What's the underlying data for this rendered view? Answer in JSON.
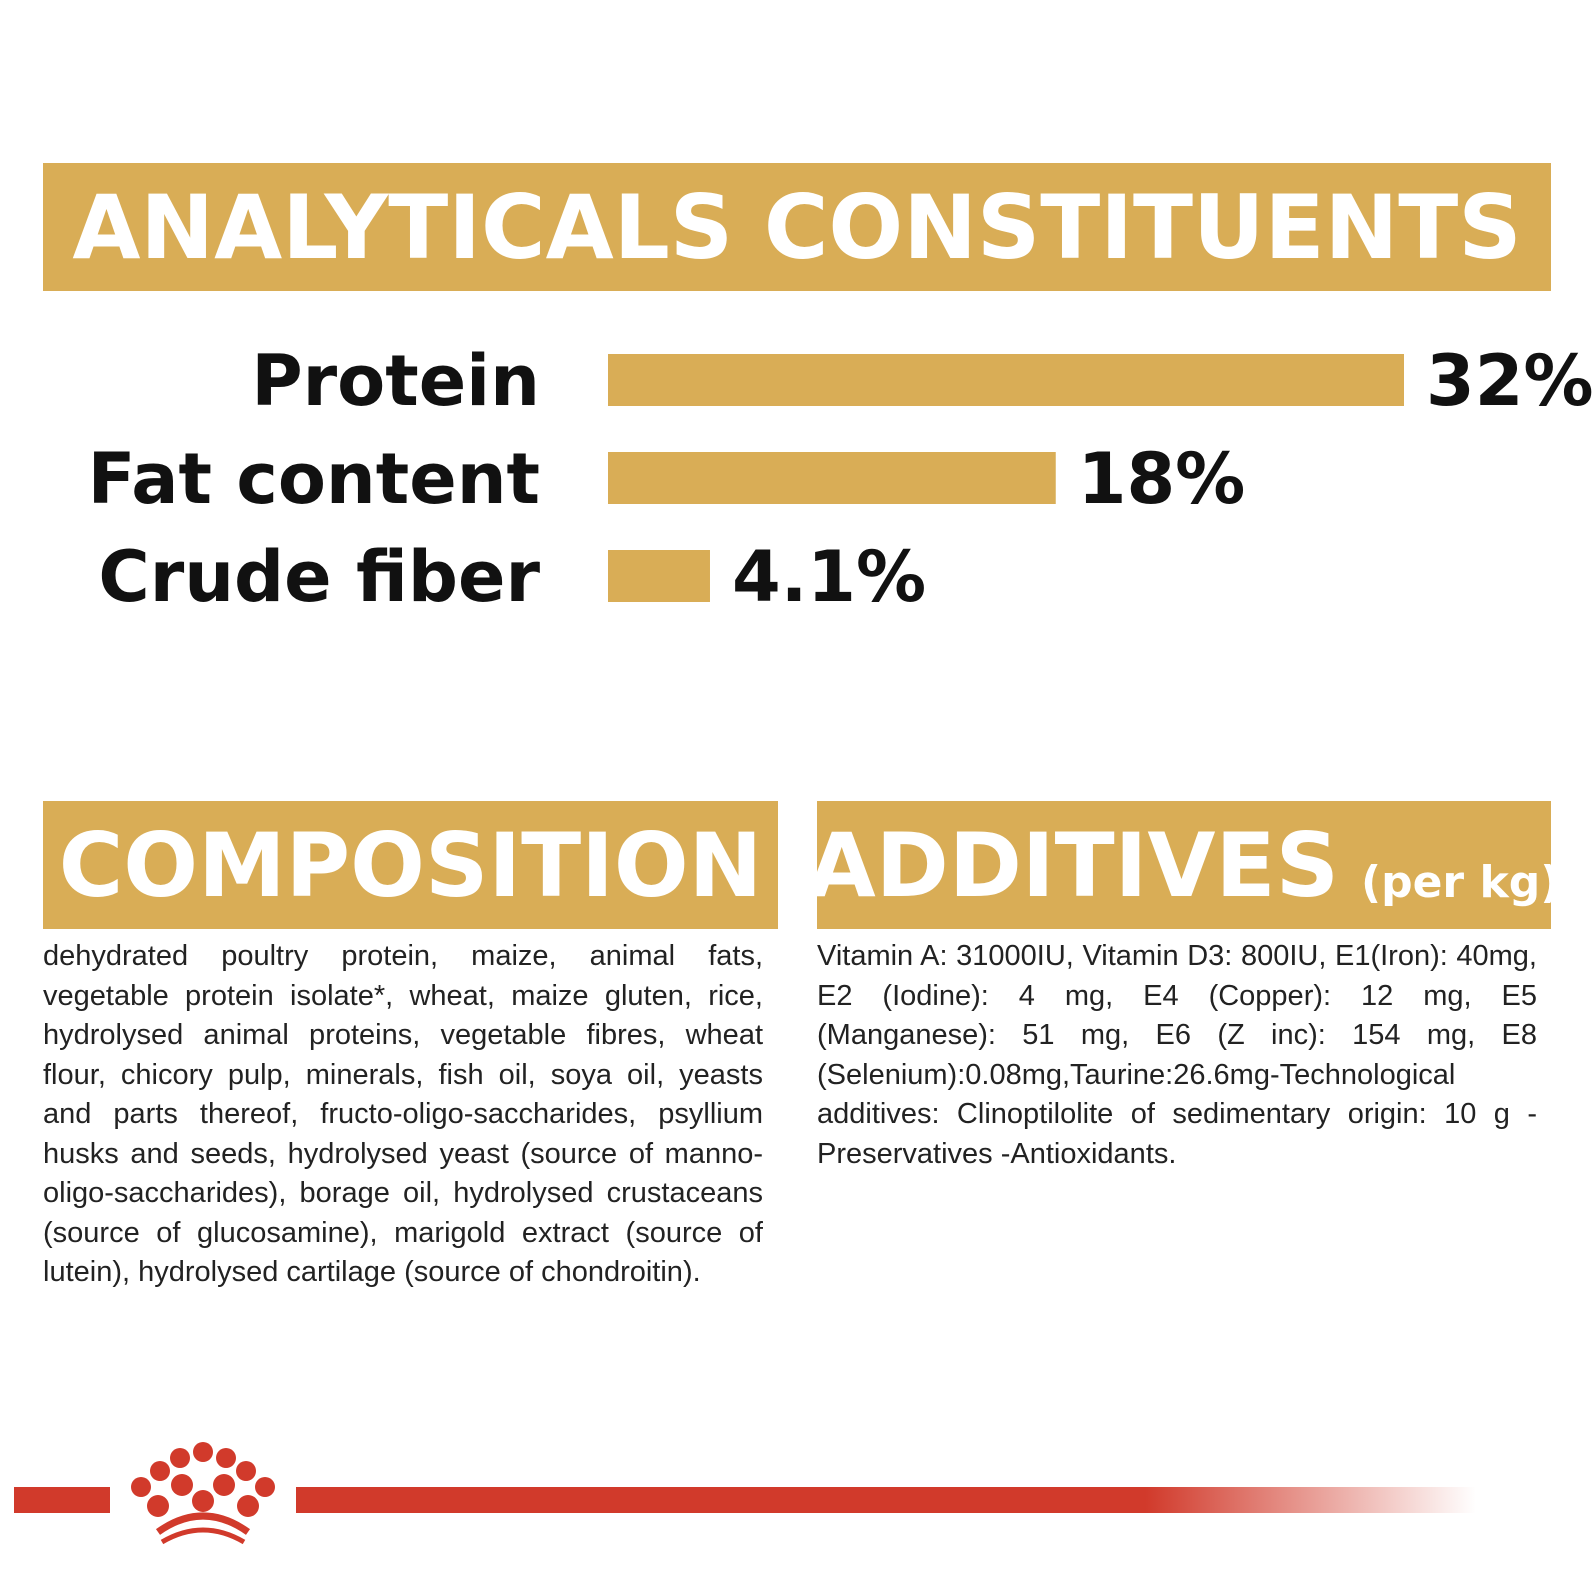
{
  "analytical": {
    "title": "ANALYTICALS CONSTITUENTS"
  },
  "chart_data": {
    "type": "bar",
    "orientation": "horizontal",
    "title": "ANALYTICALS CONSTITUENTS",
    "categories": [
      "Protein",
      "Fat content",
      "Crude fiber"
    ],
    "values": [
      32,
      18,
      4.1
    ],
    "value_labels": [
      "32%",
      "18%",
      "4.1%"
    ],
    "xlabel": "",
    "ylabel": "",
    "xlim": [
      0,
      32
    ],
    "grid": false,
    "bar_color": "#d9ad56"
  },
  "composition": {
    "title": "COMPOSITION",
    "text": "dehydrated poultry protein, maize, animal fats, vegetable protein isolate*, wheat, maize gluten, rice, hydrolysed animal proteins, vegetable fibres, wheat flour, chicory pulp, minerals, fish oil, soya oil, yeasts and parts thereof, fructo-oligo-saccharides, psyllium husks and seeds, hydrolysed yeast (source of manno-oligo-saccharides), borage oil, hydrolysed crustaceans (source of glucosamine), marigold extract (source of lutein), hydrolysed cartilage (source of chondroitin)."
  },
  "additives": {
    "title": "ADDITIVES",
    "title_suffix": "(per kg)",
    "text": "Vitamin A: 31000IU, Vitamin D3: 800IU, E1(Iron): 40mg, E2 (Iodine): 4 mg, E4 (Copper): 12 mg, E5 (Manganese): 51 mg, E6 (Z inc): 154 mg, E8 (Selenium):0.08mg,Taurine:26.6mg-Technological additives: Clinoptilolite of sedimentary origin: 10 g - Preservatives -Antioxidants."
  },
  "colors": {
    "accent": "#d9ad56",
    "brand_red": "#d13a2b",
    "text": "#111111"
  },
  "footer": {
    "logo_icon": "crown-paw-logo-icon"
  }
}
